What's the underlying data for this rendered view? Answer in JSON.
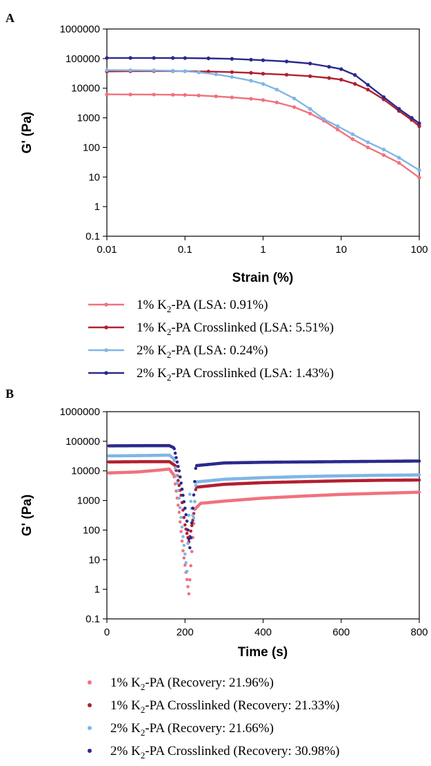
{
  "chart_data": [
    {
      "panel": "A",
      "type": "line",
      "xlabel": "Strain (%)",
      "ylabel": "G' (Pa)",
      "xscale": "log",
      "yscale": "log",
      "xlim": [
        0.01,
        100
      ],
      "ylim": [
        0.1,
        1000000
      ],
      "xticks": [
        "0.01",
        "0.1",
        "1",
        "10",
        "100"
      ],
      "yticks": [
        "0.1",
        "1",
        "10",
        "100",
        "1000",
        "10000",
        "100000",
        "1000000"
      ],
      "legend_placement": "below",
      "series": [
        {
          "legend_prefix": "1% K",
          "legend_sub": "2",
          "legend_suffix": "-PA (LSA: 0.91%)",
          "color": "#f0727e",
          "points": [
            [
              0.01,
              6200
            ],
            [
              0.02,
              6150
            ],
            [
              0.04,
              6100
            ],
            [
              0.07,
              6000
            ],
            [
              0.1,
              5900
            ],
            [
              0.15,
              5700
            ],
            [
              0.25,
              5300
            ],
            [
              0.4,
              4900
            ],
            [
              0.7,
              4400
            ],
            [
              1,
              4000
            ],
            [
              1.5,
              3300
            ],
            [
              2.5,
              2300
            ],
            [
              4,
              1400
            ],
            [
              6,
              800
            ],
            [
              9,
              400
            ],
            [
              14,
              190
            ],
            [
              22,
              100
            ],
            [
              35,
              55
            ],
            [
              55,
              30
            ],
            [
              100,
              9.5
            ]
          ]
        },
        {
          "legend_prefix": "1% K",
          "legend_sub": "2",
          "legend_suffix": "-PA Crosslinked (LSA: 5.51%)",
          "color": "#b22030",
          "points": [
            [
              0.01,
              37000
            ],
            [
              0.02,
              37500
            ],
            [
              0.04,
              38000
            ],
            [
              0.07,
              38000
            ],
            [
              0.1,
              37500
            ],
            [
              0.2,
              36500
            ],
            [
              0.4,
              35000
            ],
            [
              0.7,
              33000
            ],
            [
              1,
              31000
            ],
            [
              2,
              28500
            ],
            [
              4,
              25500
            ],
            [
              7,
              22000
            ],
            [
              10,
              19500
            ],
            [
              15,
              14000
            ],
            [
              22,
              9000
            ],
            [
              35,
              4200
            ],
            [
              55,
              1700
            ],
            [
              80,
              850
            ],
            [
              100,
              520
            ]
          ]
        },
        {
          "legend_prefix": "2% K",
          "legend_sub": "2",
          "legend_suffix": "-PA (LSA: 0.24%)",
          "color": "#7fb6e6",
          "points": [
            [
              0.01,
              41000
            ],
            [
              0.02,
              40500
            ],
            [
              0.04,
              40000
            ],
            [
              0.07,
              39000
            ],
            [
              0.1,
              37500
            ],
            [
              0.15,
              34500
            ],
            [
              0.25,
              29500
            ],
            [
              0.4,
              24000
            ],
            [
              0.7,
              18000
            ],
            [
              1,
              14000
            ],
            [
              1.5,
              9000
            ],
            [
              2.5,
              4500
            ],
            [
              4,
              2000
            ],
            [
              6,
              900
            ],
            [
              9,
              520
            ],
            [
              14,
              280
            ],
            [
              22,
              150
            ],
            [
              35,
              85
            ],
            [
              55,
              45
            ],
            [
              100,
              17
            ]
          ]
        },
        {
          "legend_prefix": "2% K",
          "legend_sub": "2",
          "legend_suffix": "-PA Crosslinked (LSA: 1.43%)",
          "color": "#2a2a8c",
          "points": [
            [
              0.01,
              105000
            ],
            [
              0.02,
              105000
            ],
            [
              0.04,
              105000
            ],
            [
              0.07,
              104500
            ],
            [
              0.1,
              104000
            ],
            [
              0.2,
              102000
            ],
            [
              0.4,
              98000
            ],
            [
              0.7,
              92000
            ],
            [
              1,
              88000
            ],
            [
              2,
              80000
            ],
            [
              4,
              68000
            ],
            [
              7,
              53000
            ],
            [
              10,
              44000
            ],
            [
              15,
              28000
            ],
            [
              22,
              13000
            ],
            [
              35,
              5000
            ],
            [
              55,
              2000
            ],
            [
              80,
              1000
            ],
            [
              100,
              650
            ]
          ]
        }
      ]
    },
    {
      "panel": "B",
      "type": "scatter",
      "xlabel": "Time (s)",
      "ylabel": "G' (Pa)",
      "xscale": "linear",
      "yscale": "log",
      "xlim": [
        0,
        800
      ],
      "ylim": [
        0.1,
        1000000
      ],
      "xticks": [
        "0",
        "200",
        "400",
        "600",
        "800"
      ],
      "yticks": [
        "0.1",
        "1",
        "10",
        "100",
        "1000",
        "10000",
        "100000",
        "1000000"
      ],
      "legend_placement": "below",
      "series": [
        {
          "legend_prefix": "1% K",
          "legend_sub": "2",
          "legend_suffix": "-PA (Recovery: 21.96%)",
          "color": "#f0727e",
          "anchors": [
            [
              5,
              8500
            ],
            [
              80,
              9200
            ],
            [
              140,
              10800
            ],
            [
              160,
              11500
            ],
            [
              172,
              7000
            ],
            [
              185,
              400
            ],
            [
              195,
              20
            ],
            [
              210,
              0.7
            ],
            [
              225,
              500
            ],
            [
              240,
              800
            ],
            [
              300,
              950
            ],
            [
              400,
              1200
            ],
            [
              500,
              1400
            ],
            [
              600,
              1600
            ],
            [
              700,
              1750
            ],
            [
              800,
              1900
            ]
          ]
        },
        {
          "legend_prefix": "1% K",
          "legend_sub": "2",
          "legend_suffix": "-PA Crosslinked (Recovery: 21.33%)",
          "color": "#b22030",
          "anchors": [
            [
              5,
              20000
            ],
            [
              100,
              20500
            ],
            [
              160,
              20500
            ],
            [
              175,
              15000
            ],
            [
              190,
              1500
            ],
            [
              200,
              150
            ],
            [
              210,
              40
            ],
            [
              222,
              300
            ],
            [
              228,
              2800
            ],
            [
              300,
              3500
            ],
            [
              400,
              4000
            ],
            [
              500,
              4300
            ],
            [
              600,
              4600
            ],
            [
              700,
              4800
            ],
            [
              800,
              4900
            ]
          ]
        },
        {
          "legend_prefix": "2% K",
          "legend_sub": "2",
          "legend_suffix": "-PA (Recovery: 21.66%)",
          "color": "#7fb6e6",
          "anchors": [
            [
              5,
              32000
            ],
            [
              100,
              33000
            ],
            [
              160,
              34000
            ],
            [
              172,
              25000
            ],
            [
              185,
              1200
            ],
            [
              195,
              60
            ],
            [
              205,
              4
            ],
            [
              212,
              1800
            ],
            [
              222,
              200
            ],
            [
              228,
              4200
            ],
            [
              300,
              5200
            ],
            [
              400,
              5900
            ],
            [
              500,
              6400
            ],
            [
              600,
              6800
            ],
            [
              700,
              7100
            ],
            [
              800,
              7300
            ]
          ]
        },
        {
          "legend_prefix": "2% K",
          "legend_sub": "2",
          "legend_suffix": "-PA Crosslinked (Recovery: 30.98%)",
          "color": "#2a2a8c",
          "anchors": [
            [
              5,
              70000
            ],
            [
              100,
              71000
            ],
            [
              160,
              71000
            ],
            [
              172,
              60000
            ],
            [
              185,
              10000
            ],
            [
              195,
              1500
            ],
            [
              205,
              200
            ],
            [
              213,
              22
            ],
            [
              220,
              550
            ],
            [
              228,
              15000
            ],
            [
              300,
              18500
            ],
            [
              400,
              19500
            ],
            [
              500,
              20000
            ],
            [
              600,
              20500
            ],
            [
              700,
              21000
            ],
            [
              800,
              21500
            ]
          ]
        }
      ]
    }
  ]
}
